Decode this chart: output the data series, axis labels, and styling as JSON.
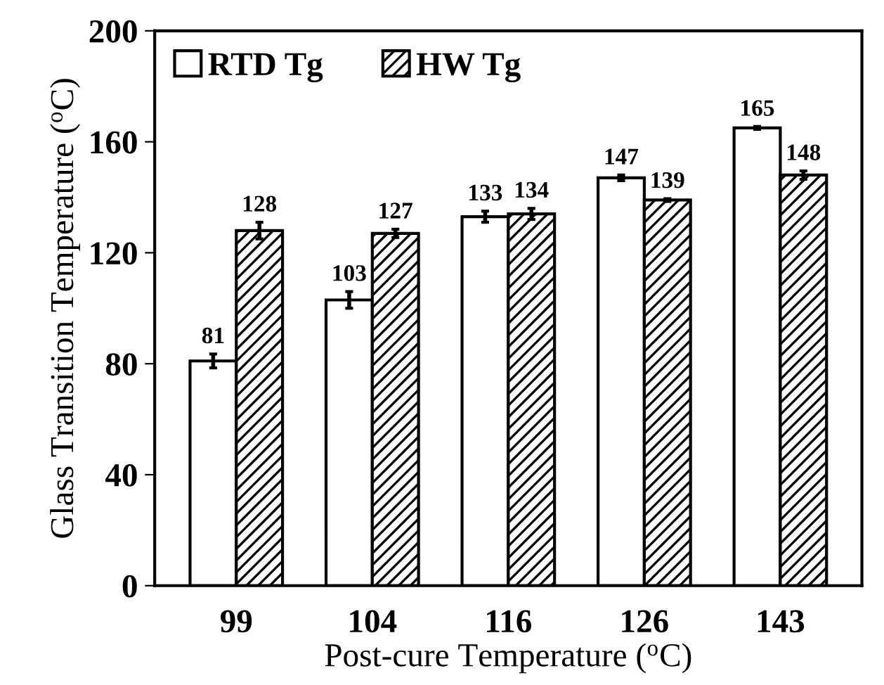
{
  "chart_data": {
    "type": "bar",
    "xlabel": "Post-cure Temperature ($^{o}$C)",
    "ylabel": "Glass Transition Temperature ($^{o}$C)",
    "categories": [
      "99",
      "104",
      "116",
      "126",
      "143"
    ],
    "series": [
      {
        "name": "RTD Tg",
        "color": "#ffffff",
        "values": [
          81,
          103,
          133,
          147,
          165
        ],
        "errors": [
          2.5,
          3,
          2,
          1,
          0.5
        ]
      },
      {
        "name": "HW Tg",
        "color": "#000000",
        "values": [
          128,
          127,
          134,
          139,
          148
        ],
        "errors": [
          3,
          1.5,
          2,
          0.5,
          1.5
        ]
      }
    ],
    "ylim": [
      0,
      200
    ],
    "yticks": [
      0,
      40,
      80,
      120,
      160,
      200
    ],
    "data_labels": true,
    "grid": false,
    "legend": "top left"
  }
}
